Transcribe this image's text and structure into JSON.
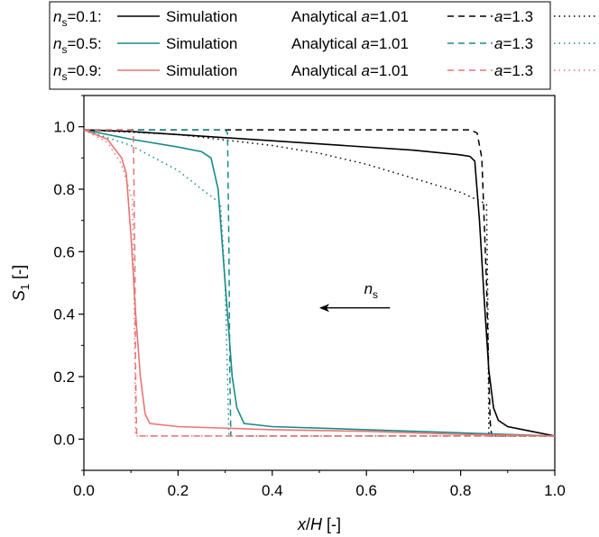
{
  "chart_data": {
    "type": "line",
    "xlabel": {
      "var": "x",
      "sep": "/",
      "var2": "H",
      "unit": " [-]"
    },
    "ylabel": {
      "var": "S",
      "sub": "1",
      "unit": " [-]"
    },
    "xlim": [
      0,
      1
    ],
    "ylim": [
      -0.1,
      1.1
    ],
    "xticks": [
      "0.0",
      "0.2",
      "0.4",
      "0.6",
      "0.8",
      "1.0"
    ],
    "yticks": [
      "0.0",
      "0.2",
      "0.4",
      "0.6",
      "0.8",
      "1.0"
    ],
    "grid": false,
    "legend": {
      "placement": "top",
      "rows": [
        {
          "prefix_var": "n",
          "prefix_sub": "s",
          "prefix_val": "=0.1:",
          "sim": "Simulation",
          "ana": "Analytical ",
          "a_var": "a",
          "a_val1": "=1.01",
          "a_val2": "=1.3"
        },
        {
          "prefix_var": "n",
          "prefix_sub": "s",
          "prefix_val": "=0.5:",
          "sim": "Simulation",
          "ana": "Analytical ",
          "a_var": "a",
          "a_val1": "=1.01",
          "a_val2": "=1.3"
        },
        {
          "prefix_var": "n",
          "prefix_sub": "s",
          "prefix_val": "=0.9:",
          "sim": "Simulation",
          "ana": "Analytical ",
          "a_var": "a",
          "a_val1": "=1.01",
          "a_val2": "=1.3"
        }
      ]
    },
    "annotation": {
      "var": "n",
      "sub": "s",
      "arrow_from": [
        0.65,
        0.42
      ],
      "arrow_to": [
        0.5,
        0.42
      ],
      "text_at": [
        0.595,
        0.465
      ]
    },
    "series": [
      {
        "group": "ns=0.1",
        "kind": "simulation",
        "color": "#000000",
        "dash": "solid",
        "points": [
          [
            0.0,
            0.99
          ],
          [
            0.1,
            0.985
          ],
          [
            0.3,
            0.965
          ],
          [
            0.5,
            0.945
          ],
          [
            0.7,
            0.925
          ],
          [
            0.8,
            0.91
          ],
          [
            0.82,
            0.905
          ],
          [
            0.83,
            0.89
          ],
          [
            0.84,
            0.7
          ],
          [
            0.85,
            0.45
          ],
          [
            0.86,
            0.22
          ],
          [
            0.87,
            0.1
          ],
          [
            0.88,
            0.06
          ],
          [
            0.9,
            0.04
          ],
          [
            0.95,
            0.025
          ],
          [
            1.0,
            0.01
          ]
        ]
      },
      {
        "group": "ns=0.1",
        "kind": "analytical-a1.01",
        "color": "#000000",
        "dash": "dash",
        "points": [
          [
            0.0,
            0.99
          ],
          [
            0.05,
            0.99
          ],
          [
            0.82,
            0.99
          ],
          [
            0.835,
            0.98
          ],
          [
            0.845,
            0.9
          ],
          [
            0.855,
            0.5
          ],
          [
            0.86,
            0.2
          ],
          [
            0.863,
            0.05
          ],
          [
            0.866,
            0.01
          ],
          [
            1.0,
            0.01
          ]
        ]
      },
      {
        "group": "ns=0.1",
        "kind": "analytical-a1.3",
        "color": "#000000",
        "dash": "dot",
        "points": [
          [
            0.0,
            0.99
          ],
          [
            0.2,
            0.975
          ],
          [
            0.4,
            0.94
          ],
          [
            0.5,
            0.915
          ],
          [
            0.6,
            0.88
          ],
          [
            0.7,
            0.835
          ],
          [
            0.8,
            0.79
          ],
          [
            0.845,
            0.76
          ],
          [
            0.855,
            0.75
          ],
          [
            0.858,
            0.4
          ],
          [
            0.86,
            0.01
          ],
          [
            1.0,
            0.01
          ]
        ]
      },
      {
        "group": "ns=0.5",
        "kind": "simulation",
        "color": "#1a8a8a",
        "dash": "solid",
        "points": [
          [
            0.0,
            0.99
          ],
          [
            0.1,
            0.96
          ],
          [
            0.2,
            0.935
          ],
          [
            0.25,
            0.92
          ],
          [
            0.27,
            0.9
          ],
          [
            0.285,
            0.8
          ],
          [
            0.295,
            0.6
          ],
          [
            0.305,
            0.4
          ],
          [
            0.315,
            0.2
          ],
          [
            0.325,
            0.1
          ],
          [
            0.34,
            0.05
          ],
          [
            0.4,
            0.04
          ],
          [
            0.6,
            0.03
          ],
          [
            0.8,
            0.02
          ],
          [
            1.0,
            0.01
          ]
        ]
      },
      {
        "group": "ns=0.5",
        "kind": "analytical-a1.01",
        "color": "#1a8a8a",
        "dash": "dash",
        "points": [
          [
            0.0,
            0.99
          ],
          [
            0.3,
            0.99
          ],
          [
            0.305,
            0.98
          ],
          [
            0.308,
            0.6
          ],
          [
            0.31,
            0.2
          ],
          [
            0.312,
            0.01
          ],
          [
            1.0,
            0.01
          ]
        ]
      },
      {
        "group": "ns=0.5",
        "kind": "analytical-a1.3",
        "color": "#1a8a8a",
        "dash": "dot",
        "points": [
          [
            0.0,
            0.99
          ],
          [
            0.1,
            0.94
          ],
          [
            0.2,
            0.86
          ],
          [
            0.25,
            0.8
          ],
          [
            0.29,
            0.755
          ],
          [
            0.3,
            0.5
          ],
          [
            0.308,
            0.01
          ],
          [
            1.0,
            0.01
          ]
        ]
      },
      {
        "group": "ns=0.9",
        "kind": "simulation",
        "color": "#e87575",
        "dash": "solid",
        "points": [
          [
            0.0,
            0.99
          ],
          [
            0.05,
            0.96
          ],
          [
            0.08,
            0.9
          ],
          [
            0.09,
            0.85
          ],
          [
            0.1,
            0.65
          ],
          [
            0.11,
            0.4
          ],
          [
            0.12,
            0.2
          ],
          [
            0.13,
            0.08
          ],
          [
            0.14,
            0.05
          ],
          [
            0.2,
            0.04
          ],
          [
            0.4,
            0.03
          ],
          [
            0.6,
            0.025
          ],
          [
            0.8,
            0.015
          ],
          [
            1.0,
            0.01
          ]
        ]
      },
      {
        "group": "ns=0.9",
        "kind": "analytical-a1.01",
        "color": "#e87575",
        "dash": "dash",
        "points": [
          [
            0.0,
            0.99
          ],
          [
            0.1,
            0.99
          ],
          [
            0.105,
            0.98
          ],
          [
            0.108,
            0.6
          ],
          [
            0.11,
            0.2
          ],
          [
            0.112,
            0.01
          ],
          [
            1.0,
            0.01
          ]
        ]
      },
      {
        "group": "ns=0.9",
        "kind": "analytical-a1.3",
        "color": "#e87575",
        "dash": "dot",
        "points": [
          [
            0.0,
            0.99
          ],
          [
            0.05,
            0.95
          ],
          [
            0.08,
            0.88
          ],
          [
            0.1,
            0.78
          ],
          [
            0.103,
            0.77
          ],
          [
            0.107,
            0.4
          ],
          [
            0.11,
            0.01
          ],
          [
            1.0,
            0.01
          ]
        ]
      }
    ]
  }
}
